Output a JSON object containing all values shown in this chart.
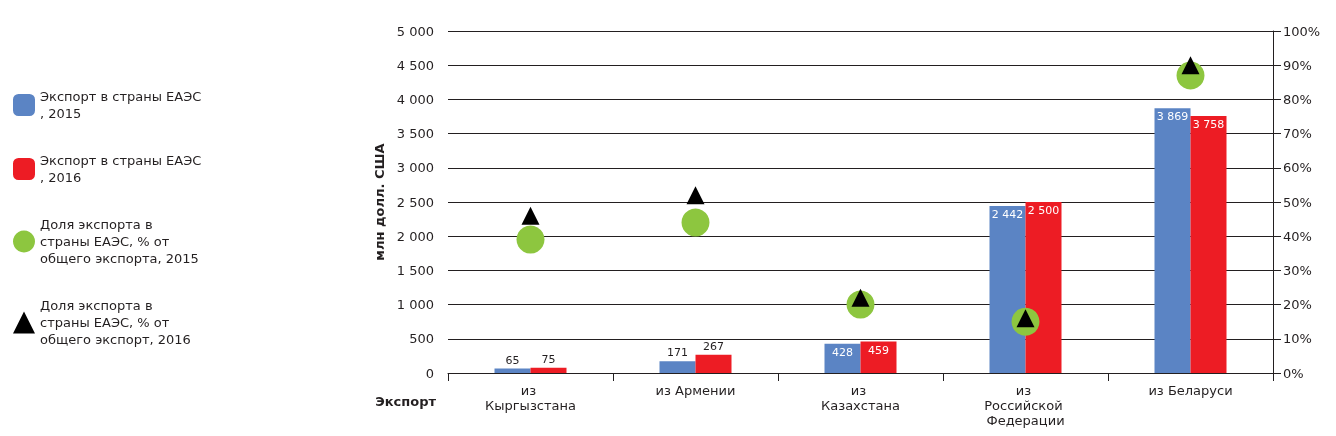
{
  "chart_data": {
    "type": "bar",
    "xlabel": "Экспорт",
    "ylabel": "млн долл. США",
    "categories": [
      "из Кыргызстана",
      "из Армении",
      "из Казахстана",
      "из Российской Федерации",
      "из Беларуси"
    ],
    "series": [
      {
        "name": "Экспорт в страны ЕАЭС, 2015",
        "color": "#5b84c4",
        "values": [
          65,
          171,
          428,
          2442,
          3869
        ],
        "value_labels": [
          "65",
          "171",
          "428",
          "2 442",
          "3 869"
        ]
      },
      {
        "name": "Экспорт в страны ЕАЭС, 2016",
        "color": "#ed1c24",
        "values": [
          75,
          267,
          459,
          2500,
          3758
        ],
        "value_labels": [
          "75",
          "267",
          "459",
          "2 500",
          "3 758"
        ]
      },
      {
        "name": "Доля экспорта в страны ЕАЭС, % от общего экспорта, 2015",
        "type": "scatter",
        "axis": "y2",
        "marker": "circle",
        "color": "#8dc63f",
        "values": [
          39,
          44,
          20,
          15,
          87
        ]
      },
      {
        "name": "Доля экспорта в страны ЕАЭС, % от общего экспорт, 2016",
        "type": "scatter",
        "axis": "y2",
        "marker": "triangle",
        "color": "#000000",
        "values": [
          46,
          52,
          22,
          16,
          90
        ]
      }
    ],
    "ylim": [
      0,
      5000
    ],
    "yticks": [
      {
        "value": 0,
        "label": "0"
      },
      {
        "value": 500,
        "label": "500"
      },
      {
        "value": 1000,
        "label": "1 000"
      },
      {
        "value": 1500,
        "label": "1 500"
      },
      {
        "value": 2000,
        "label": "2 000"
      },
      {
        "value": 2500,
        "label": "2 500"
      },
      {
        "value": 3000,
        "label": "3 000"
      },
      {
        "value": 3500,
        "label": "3 500"
      },
      {
        "value": 4000,
        "label": "4 000"
      },
      {
        "value": 4500,
        "label": "4 500"
      },
      {
        "value": 5000,
        "label": "5 000"
      }
    ],
    "y2lim": [
      0,
      100
    ],
    "y2ticks": [
      {
        "value": 0,
        "label": "0%"
      },
      {
        "value": 10,
        "label": "10%"
      },
      {
        "value": 20,
        "label": "20%"
      },
      {
        "value": 30,
        "label": "30%"
      },
      {
        "value": 40,
        "label": "40%"
      },
      {
        "value": 50,
        "label": "50%"
      },
      {
        "value": 60,
        "label": "60%"
      },
      {
        "value": 70,
        "label": "70%"
      },
      {
        "value": 80,
        "label": "80%"
      },
      {
        "value": 90,
        "label": "90%"
      },
      {
        "value": 100,
        "label": "100%"
      }
    ],
    "grid": "y",
    "legend": "left"
  }
}
